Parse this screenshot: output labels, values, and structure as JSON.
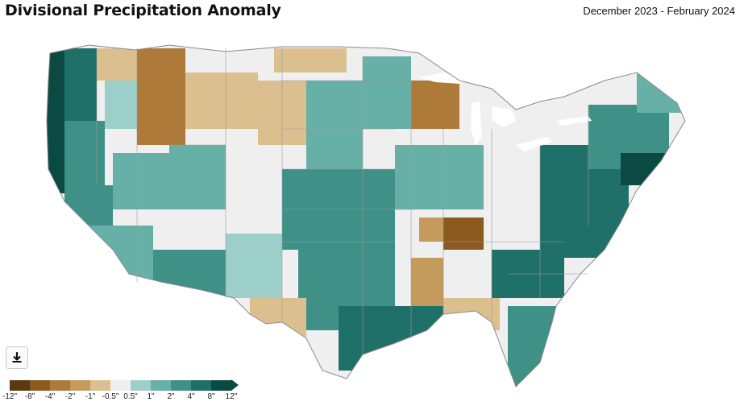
{
  "header": {
    "title": "Divisional Precipitation Anomaly",
    "date_range": "December 2023 - February 2024"
  },
  "toolbar": {
    "download_icon": "download-icon"
  },
  "legend": {
    "colors": [
      "#5a3a12",
      "#8c5a1f",
      "#ad7a3a",
      "#c49b5c",
      "#dcbf8e",
      "#efefef",
      "#9ccfca",
      "#67b0a8",
      "#3f9188",
      "#1f7068",
      "#0b4a42"
    ],
    "labels": [
      "-12\"",
      "-8\"",
      "-4\"",
      "-2\"",
      "-1\"",
      "-0.5\"",
      "0.5\"",
      "1\"",
      "2\"",
      "4\"",
      "8\"",
      "12\""
    ]
  },
  "map": {
    "boundary_color": "#ffffff",
    "state_border_color": "#8a8a8a"
  }
}
